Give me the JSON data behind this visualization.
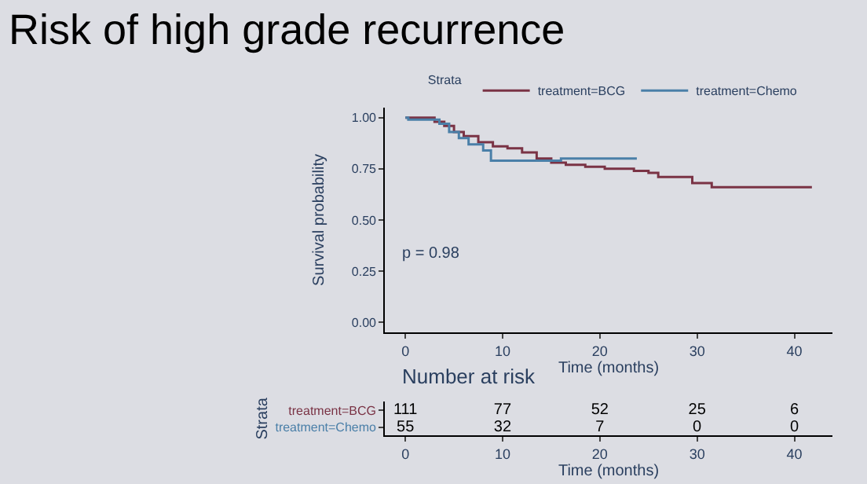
{
  "chart_data": [
    {
      "type": "step",
      "title": "Risk of high grade recurrence",
      "xlabel": "Time (months)",
      "ylabel": "Survival probability",
      "legend_title": "Strata",
      "legend": "top",
      "xlim": [
        -2.1,
        43.9
      ],
      "xticks": [
        0,
        10,
        20,
        30,
        40
      ],
      "ylim": [
        -0.05,
        1.05
      ],
      "yticks": [
        {
          "value": 0,
          "label": "0.00"
        },
        {
          "value": 0.25,
          "label": "0.25"
        },
        {
          "value": 0.5,
          "label": "0.50"
        },
        {
          "value": 0.75,
          "label": "0.75"
        },
        {
          "value": 1,
          "label": "1.00"
        }
      ],
      "grid": false,
      "annotations": [
        "p = 0.98"
      ],
      "series": [
        {
          "name": "treatment=BCG",
          "color": "#7a3345",
          "x": [
            0,
            3,
            4,
            5,
            6,
            7.5,
            9,
            10.5,
            12,
            13.5,
            15,
            16.5,
            18.5,
            20.5,
            23.5,
            25,
            26,
            29.5,
            31.5,
            41.8
          ],
          "values": [
            1,
            0.98,
            0.96,
            0.93,
            0.91,
            0.88,
            0.86,
            0.85,
            0.83,
            0.8,
            0.78,
            0.77,
            0.76,
            0.75,
            0.74,
            0.73,
            0.71,
            0.68,
            0.66,
            0.66
          ]
        },
        {
          "name": "treatment=Chemo",
          "color": "#4a7fa8",
          "x": [
            0,
            0.3,
            3,
            3.5,
            4.5,
            5.5,
            6.5,
            8,
            8.8,
            14,
            16,
            23.8
          ],
          "values": [
            1,
            0.99,
            0.99,
            0.97,
            0.93,
            0.9,
            0.87,
            0.84,
            0.79,
            0.79,
            0.8,
            0.8
          ]
        }
      ]
    },
    {
      "type": "heatmap",
      "title": "Number at risk",
      "xlabel": "Time (months)",
      "ylabel": "Strata",
      "xlim": [
        -2.1,
        43.9
      ],
      "xticks": [
        0,
        10,
        20,
        30,
        40
      ],
      "data_labels": true,
      "x": [
        0,
        10,
        20,
        30,
        40
      ],
      "y_categories": [
        "treatment=BCG",
        "treatment=Chemo"
      ],
      "colors": [
        "#7a3345",
        "#4a7fa8"
      ],
      "cells": [
        [
          111,
          77,
          52,
          25,
          6
        ],
        [
          55,
          32,
          7,
          0,
          0
        ]
      ]
    }
  ]
}
